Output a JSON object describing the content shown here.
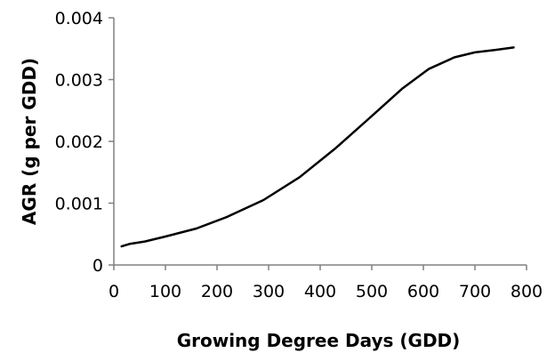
{
  "chart_data": {
    "type": "line",
    "title": "",
    "xlabel": "Growing Degree Days (GDD)",
    "ylabel": "AGR (g per GDD)",
    "xlim": [
      0,
      800
    ],
    "ylim": [
      0,
      0.004
    ],
    "x_ticks": [
      "0",
      "100",
      "200",
      "300",
      "400",
      "500",
      "600",
      "700",
      "800"
    ],
    "y_ticks": [
      "0",
      "0.001",
      "0.002",
      "0.003",
      "0.004"
    ],
    "grid": false,
    "legend": "none",
    "series": [
      {
        "color": "#000000",
        "x": [
          15,
          30,
          60,
          100,
          160,
          220,
          290,
          360,
          430,
          500,
          560,
          610,
          660,
          700,
          740,
          775
        ],
        "y": [
          0.0003,
          0.00034,
          0.00038,
          0.00046,
          0.00059,
          0.00078,
          0.00105,
          0.00142,
          0.00189,
          0.00241,
          0.00286,
          0.00317,
          0.00336,
          0.00344,
          0.00348,
          0.00352
        ]
      }
    ]
  }
}
